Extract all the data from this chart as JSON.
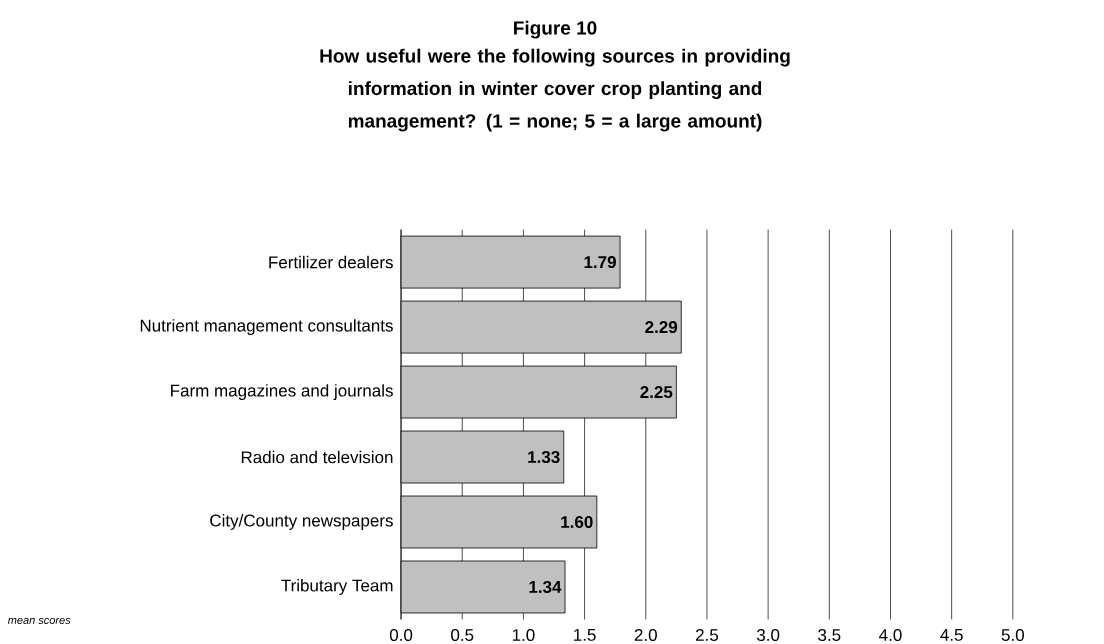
{
  "chart_data": {
    "type": "bar",
    "orientation": "horizontal",
    "title": "Figure 10",
    "subtitle": "How useful were the following sources in providing information in winter cover crop planting and management? (1 = none; 5 = a large amount)",
    "categories": [
      "Fertilizer dealers",
      "Nutrient management consultants",
      "Farm magazines and journals",
      "Radio and television",
      "City/County newspapers",
      "Tributary Team"
    ],
    "values": [
      1.79,
      2.29,
      2.25,
      1.33,
      1.6,
      1.34
    ],
    "value_labels": [
      "1.79",
      "2.29",
      "2.25",
      "1.33",
      "1.60",
      "1.34"
    ],
    "color": "#c0c0c0",
    "xlim": [
      0,
      5
    ],
    "xticks": [
      {
        "value": 0,
        "label": "0.0"
      },
      {
        "value": 0.5,
        "label": "0.5"
      },
      {
        "value": 1,
        "label": "1.0"
      },
      {
        "value": 1.5,
        "label": "1.5"
      },
      {
        "value": 2,
        "label": "2.0"
      },
      {
        "value": 2.5,
        "label": "2.5"
      },
      {
        "value": 3,
        "label": "3.0"
      },
      {
        "value": 3.5,
        "label": "3.5"
      },
      {
        "value": 4,
        "label": "4.0"
      },
      {
        "value": 4.5,
        "label": "4.5"
      },
      {
        "value": 5,
        "label": "5.0"
      }
    ],
    "grid": "x",
    "annotations": [
      "mean scores"
    ]
  }
}
